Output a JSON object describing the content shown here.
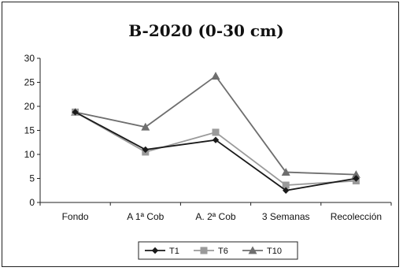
{
  "chart_data": {
    "type": "line",
    "title": "B-2020 (0-30 cm)",
    "xlabel": "",
    "ylabel": "",
    "categories": [
      "Fondo",
      "A 1ª Cob",
      "A. 2ª Cob",
      "3 Semanas",
      "Recolección"
    ],
    "ylim": [
      0,
      30
    ],
    "yticks": [
      0,
      5,
      10,
      15,
      20,
      25,
      30
    ],
    "grid": false,
    "legend_position": "bottom",
    "series": [
      {
        "name": "T1",
        "marker": "diamond",
        "color": "#1a1a1a",
        "values": [
          18.8,
          11.0,
          13.0,
          2.5,
          5.0
        ]
      },
      {
        "name": "T6",
        "marker": "square",
        "color": "#9a9a9a",
        "values": [
          18.8,
          10.5,
          14.6,
          3.6,
          4.5
        ]
      },
      {
        "name": "T10",
        "marker": "triangle",
        "color": "#6e6e6e",
        "values": [
          18.8,
          15.7,
          26.3,
          6.3,
          5.8
        ]
      }
    ]
  }
}
